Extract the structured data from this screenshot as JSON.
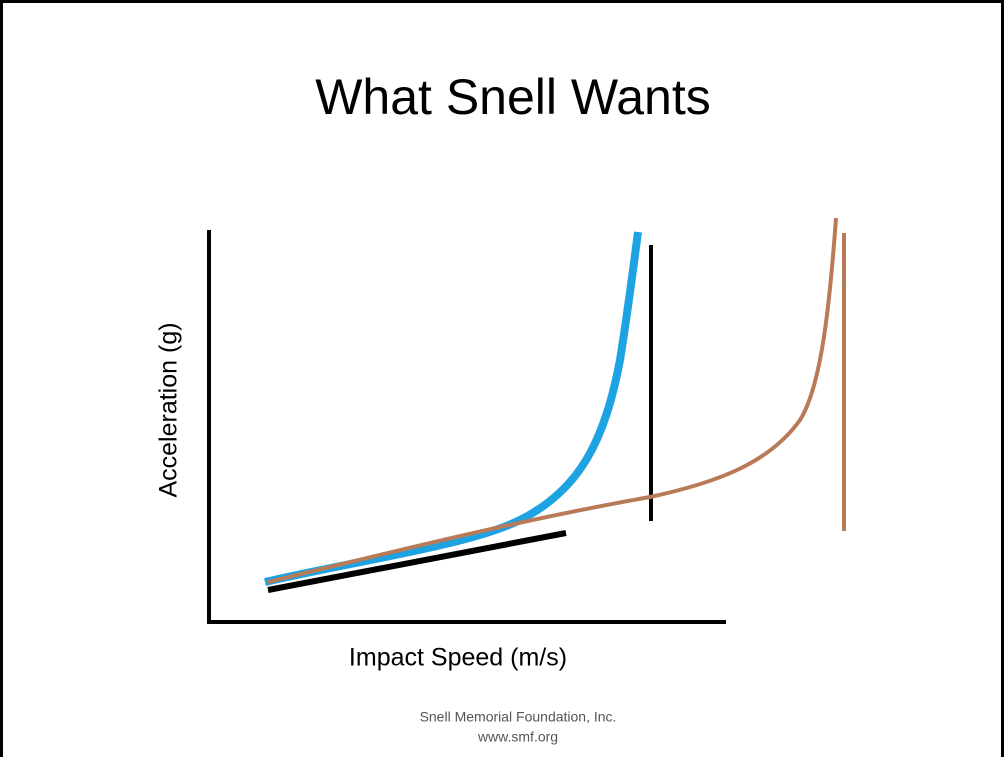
{
  "title": "What Snell Wants",
  "diagram": {
    "y_axis_label": "Acceleration (g)",
    "x_axis_label": "Impact Speed (m/s)"
  },
  "footer": {
    "line1": "Snell Memorial Foundation, Inc.",
    "line2": "www.smf.org"
  }
}
